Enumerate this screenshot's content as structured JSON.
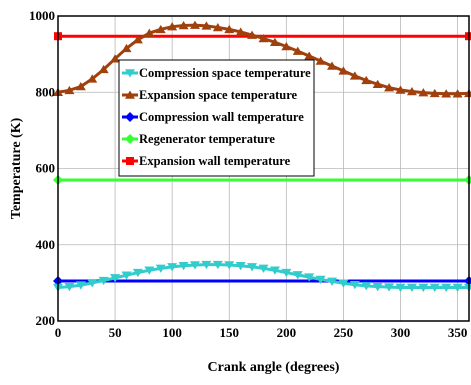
{
  "chart_data": {
    "type": "line",
    "xlabel": "Crank angle (degrees)",
    "ylabel": "Temperature (K)",
    "xlim": [
      0,
      360
    ],
    "ylim": [
      200,
      1000
    ],
    "xticks": [
      0,
      50,
      100,
      150,
      200,
      250,
      300,
      350
    ],
    "xtick_labels": [
      "0",
      "50",
      "100",
      "150",
      "200",
      "250",
      "300",
      "350"
    ],
    "yticks": [
      200,
      400,
      600,
      800,
      1000
    ],
    "ytick_labels": [
      "200",
      "400",
      "600",
      "800",
      "1000"
    ],
    "grid": true,
    "legend_position": "top-center",
    "x": [
      0,
      10,
      20,
      30,
      40,
      50,
      60,
      70,
      80,
      90,
      100,
      110,
      120,
      130,
      140,
      150,
      160,
      170,
      180,
      190,
      200,
      210,
      220,
      230,
      240,
      250,
      260,
      270,
      280,
      290,
      300,
      310,
      320,
      330,
      340,
      350,
      360
    ],
    "series": [
      {
        "name": "Compression space temperature",
        "color": "#33cccc",
        "marker": "triangle-down",
        "values": [
          288,
          290,
          294,
          300,
          306,
          313,
          320,
          327,
          333,
          338,
          342,
          345,
          347,
          348,
          348,
          347,
          345,
          342,
          338,
          333,
          327,
          321,
          315,
          309,
          304,
          299,
          295,
          292,
          290,
          289,
          288,
          288,
          288,
          288,
          288,
          288,
          288
        ]
      },
      {
        "name": "Expansion space temperature",
        "color": "#a0410d",
        "marker": "triangle-up",
        "values": [
          800,
          805,
          815,
          835,
          860,
          888,
          915,
          938,
          955,
          965,
          972,
          975,
          976,
          974,
          970,
          965,
          958,
          950,
          941,
          931,
          920,
          908,
          895,
          882,
          869,
          856,
          843,
          831,
          821,
          812,
          806,
          802,
          799,
          797,
          796,
          796,
          797
        ]
      },
      {
        "name": "Compression wall temperature",
        "color": "#0000ff",
        "marker": "diamond",
        "values": [
          305,
          305,
          305,
          305,
          305,
          305,
          305,
          305,
          305,
          305,
          305,
          305,
          305,
          305,
          305,
          305,
          305,
          305,
          305,
          305,
          305,
          305,
          305,
          305,
          305,
          305,
          305,
          305,
          305,
          305,
          305,
          305,
          305,
          305,
          305,
          305,
          305
        ]
      },
      {
        "name": "Regenerator temperature",
        "color": "#33ff33",
        "marker": "diamond",
        "values": [
          570,
          570,
          570,
          570,
          570,
          570,
          570,
          570,
          570,
          570,
          570,
          570,
          570,
          570,
          570,
          570,
          570,
          570,
          570,
          570,
          570,
          570,
          570,
          570,
          570,
          570,
          570,
          570,
          570,
          570,
          570,
          570,
          570,
          570,
          570,
          570,
          570
        ]
      },
      {
        "name": "Expansion wall temperature",
        "color": "#ff0000",
        "marker": "square",
        "values": [
          947,
          947,
          947,
          947,
          947,
          947,
          947,
          947,
          947,
          947,
          947,
          947,
          947,
          947,
          947,
          947,
          947,
          947,
          947,
          947,
          947,
          947,
          947,
          947,
          947,
          947,
          947,
          947,
          947,
          947,
          947,
          947,
          947,
          947,
          947,
          947,
          947
        ]
      }
    ]
  }
}
